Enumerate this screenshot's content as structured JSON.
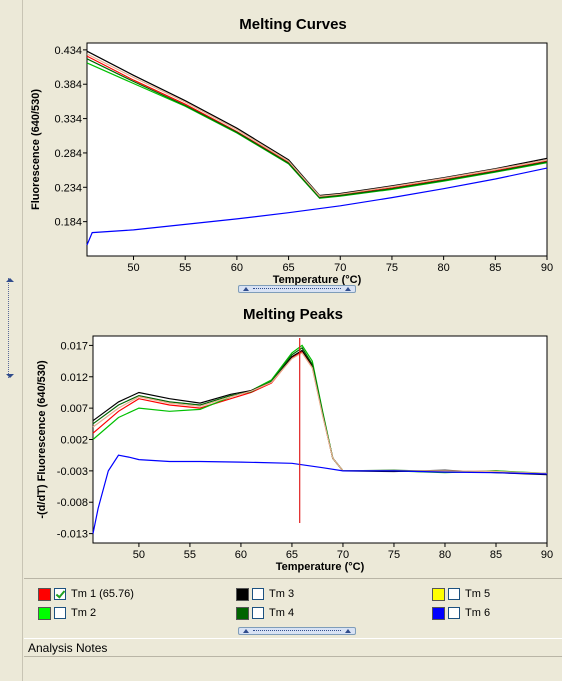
{
  "chart_data": [
    {
      "type": "line",
      "title": "Melting Curves",
      "xlabel": "Temperature (°C)",
      "ylabel": "Fluorescence (640/530)",
      "xlim": [
        45.5,
        90
      ],
      "ylim": [
        0.134,
        0.444
      ],
      "xticks": [
        50,
        55,
        60,
        65,
        70,
        75,
        80,
        85,
        90
      ],
      "yticks": [
        0.434,
        0.384,
        0.334,
        0.284,
        0.234,
        0.184
      ],
      "ytick_labels": [
        "0.434",
        "0.384",
        "0.334",
        "0.284",
        "0.234",
        "0.184"
      ],
      "series": [
        {
          "color": "#ff0000",
          "x": [
            45.5,
            50,
            55,
            60,
            65,
            68,
            70,
            75,
            80,
            85,
            90
          ],
          "y": [
            0.425,
            0.39,
            0.355,
            0.315,
            0.27,
            0.22,
            0.223,
            0.233,
            0.245,
            0.258,
            0.272
          ]
        },
        {
          "color": "#00c000",
          "x": [
            45.5,
            50,
            55,
            60,
            65,
            68,
            70,
            75,
            80,
            85,
            90
          ],
          "y": [
            0.415,
            0.385,
            0.352,
            0.313,
            0.268,
            0.218,
            0.221,
            0.231,
            0.243,
            0.256,
            0.27
          ]
        },
        {
          "color": "#000000",
          "x": [
            45.5,
            50,
            55,
            60,
            65,
            68,
            70,
            75,
            80,
            85,
            90
          ],
          "y": [
            0.432,
            0.397,
            0.36,
            0.32,
            0.274,
            0.222,
            0.225,
            0.236,
            0.248,
            0.261,
            0.276
          ]
        },
        {
          "color": "#006400",
          "x": [
            45.5,
            50,
            55,
            60,
            65,
            68,
            70,
            75,
            80,
            85,
            90
          ],
          "y": [
            0.421,
            0.388,
            0.353,
            0.314,
            0.269,
            0.219,
            0.222,
            0.232,
            0.244,
            0.257,
            0.271
          ]
        },
        {
          "color": "#e8b090",
          "x": [
            45.5,
            50,
            55,
            60,
            65,
            68,
            70,
            75,
            80,
            85,
            90
          ],
          "y": [
            0.428,
            0.394,
            0.358,
            0.318,
            0.272,
            0.221,
            0.224,
            0.235,
            0.247,
            0.26,
            0.274
          ]
        },
        {
          "color": "#0000ff",
          "x": [
            45.5,
            46,
            50,
            55,
            60,
            65,
            70,
            75,
            80,
            85,
            90
          ],
          "y": [
            0.15,
            0.168,
            0.172,
            0.18,
            0.188,
            0.197,
            0.207,
            0.219,
            0.232,
            0.246,
            0.262
          ]
        }
      ]
    },
    {
      "type": "line",
      "title": "Melting Peaks",
      "xlabel": "Temperature (°C)",
      "ylabel": "-(d/dT) Fluorescence (640/530)",
      "xlim": [
        45.5,
        90
      ],
      "ylim": [
        -0.0145,
        0.0185
      ],
      "xticks": [
        50,
        55,
        60,
        65,
        70,
        75,
        80,
        85,
        90
      ],
      "yticks": [
        0.017,
        0.012,
        0.007,
        0.002,
        -0.003,
        -0.008,
        -0.013
      ],
      "ytick_labels": [
        "0.017",
        "0.012",
        "0.007",
        "0.002",
        "-0.003",
        "-0.008",
        "-0.013"
      ],
      "marker_x": 65.76,
      "series": [
        {
          "color": "#ff0000",
          "x": [
            45.5,
            48,
            50,
            53,
            56,
            59,
            61,
            63,
            65,
            66,
            67,
            68,
            69,
            70,
            75,
            80,
            85,
            90
          ],
          "y": [
            0.003,
            0.0065,
            0.0085,
            0.0075,
            0.007,
            0.0085,
            0.0095,
            0.011,
            0.015,
            0.016,
            0.0135,
            0.006,
            -0.001,
            -0.003,
            -0.003,
            -0.0032,
            -0.003,
            -0.0035
          ]
        },
        {
          "color": "#00c000",
          "x": [
            45.5,
            48,
            50,
            53,
            56,
            59,
            61,
            63,
            65,
            66,
            67,
            68,
            69,
            70,
            75,
            80,
            85,
            90
          ],
          "y": [
            0.002,
            0.0055,
            0.007,
            0.0065,
            0.0068,
            0.0088,
            0.0098,
            0.0115,
            0.0158,
            0.017,
            0.0145,
            0.0065,
            -0.001,
            -0.003,
            -0.003,
            -0.0033,
            -0.003,
            -0.0034
          ]
        },
        {
          "color": "#000000",
          "x": [
            45.5,
            48,
            50,
            53,
            56,
            59,
            61,
            63,
            65,
            66,
            67,
            68,
            69,
            70,
            75,
            80,
            85,
            90
          ],
          "y": [
            0.005,
            0.008,
            0.0095,
            0.0085,
            0.0078,
            0.0092,
            0.0098,
            0.0112,
            0.0152,
            0.0162,
            0.0138,
            0.006,
            -0.001,
            -0.003,
            -0.0031,
            -0.0029,
            -0.0033,
            -0.0036
          ]
        },
        {
          "color": "#006400",
          "x": [
            45.5,
            48,
            50,
            53,
            56,
            59,
            61,
            63,
            65,
            66,
            67,
            68,
            69,
            70,
            75,
            80,
            85,
            90
          ],
          "y": [
            0.0045,
            0.0075,
            0.009,
            0.008,
            0.0075,
            0.009,
            0.0096,
            0.0113,
            0.0155,
            0.0166,
            0.014,
            0.0062,
            -0.001,
            -0.003,
            -0.0029,
            -0.0031,
            -0.0032,
            -0.0035
          ]
        },
        {
          "color": "#e8b090",
          "x": [
            45.5,
            48,
            50,
            53,
            56,
            59,
            61,
            63,
            65,
            66,
            67,
            68,
            69,
            70,
            75,
            80,
            85,
            90
          ],
          "y": [
            0.004,
            0.007,
            0.0088,
            0.0078,
            0.0073,
            0.0088,
            0.0097,
            0.0111,
            0.0149,
            0.0158,
            0.0134,
            0.0058,
            -0.001,
            -0.003,
            -0.003,
            -0.003,
            -0.0031,
            -0.0034
          ]
        },
        {
          "color": "#0000ff",
          "x": [
            45.5,
            46,
            47,
            48,
            49,
            50,
            53,
            56,
            60,
            65,
            68,
            70,
            75,
            80,
            85,
            90
          ],
          "y": [
            -0.013,
            -0.009,
            -0.003,
            -0.0005,
            -0.0008,
            -0.0012,
            -0.0015,
            -0.0015,
            -0.0016,
            -0.0018,
            -0.0025,
            -0.003,
            -0.003,
            -0.0032,
            -0.0033,
            -0.0035
          ]
        }
      ]
    }
  ],
  "legend": [
    {
      "label": "Tm 1 (65.76)",
      "color": "#ff0000",
      "checked": true
    },
    {
      "label": "Tm 3",
      "color": "#000000",
      "checked": false
    },
    {
      "label": "Tm 5",
      "color": "#ffff00",
      "checked": false
    },
    {
      "label": "Tm 2",
      "color": "#00ff00",
      "checked": false
    },
    {
      "label": "Tm 4",
      "color": "#006400",
      "checked": false
    },
    {
      "label": "Tm 6",
      "color": "#0000ff",
      "checked": false
    }
  ],
  "notes": {
    "label": "Analysis Notes"
  }
}
